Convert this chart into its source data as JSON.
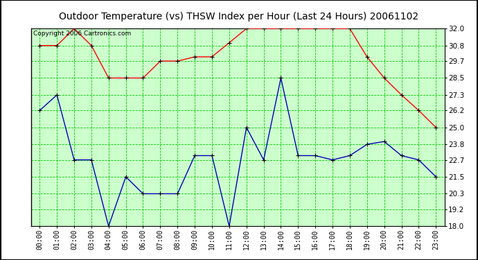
{
  "title": "Outdoor Temperature (vs) THSW Index per Hour (Last 24 Hours) 20061102",
  "copyright": "Copyright 2006 Cartronics.com",
  "hours": [
    "00:00",
    "01:00",
    "02:00",
    "03:00",
    "04:00",
    "05:00",
    "06:00",
    "07:00",
    "08:00",
    "09:00",
    "10:00",
    "11:00",
    "12:00",
    "13:00",
    "14:00",
    "15:00",
    "16:00",
    "17:00",
    "18:00",
    "19:00",
    "20:00",
    "21:00",
    "22:00",
    "23:00"
  ],
  "red_data": [
    30.8,
    30.8,
    32.0,
    30.8,
    28.5,
    28.5,
    28.5,
    29.7,
    29.7,
    30.0,
    30.0,
    31.0,
    32.0,
    32.0,
    32.0,
    32.0,
    32.0,
    32.0,
    32.0,
    30.0,
    28.5,
    27.3,
    26.2,
    25.0
  ],
  "blue_data": [
    26.2,
    27.3,
    22.7,
    22.7,
    18.0,
    21.5,
    20.3,
    20.3,
    20.3,
    23.0,
    23.0,
    18.0,
    25.0,
    22.7,
    28.5,
    23.0,
    23.0,
    22.7,
    23.0,
    23.8,
    24.0,
    23.0,
    22.7,
    21.5
  ],
  "ylim_min": 18.0,
  "ylim_max": 32.0,
  "yticks": [
    18.0,
    19.2,
    20.3,
    21.5,
    22.7,
    23.8,
    25.0,
    26.2,
    27.3,
    28.5,
    29.7,
    30.8,
    32.0
  ],
  "red_color": "#ff0000",
  "blue_color": "#0000bb",
  "grid_color": "#00cc00",
  "plot_bg_color": "#ccffcc",
  "outer_bg_color": "#ffffff",
  "title_fontsize": 10,
  "copyright_fontsize": 6.5,
  "tick_fontsize": 7,
  "ytick_fontsize": 7.5
}
